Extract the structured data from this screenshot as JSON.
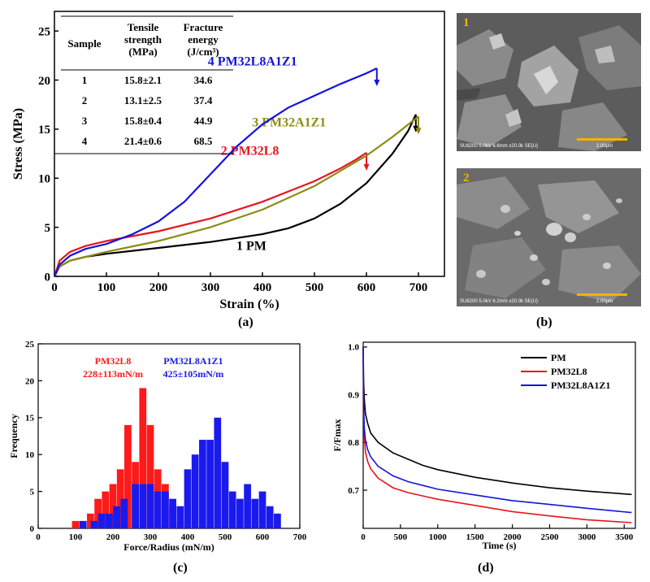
{
  "panels": {
    "a": {
      "caption": "(a)"
    },
    "b": {
      "caption": "(b)",
      "images": [
        {
          "number": "1",
          "info": "SU8200 5.0kV 6.6mm x20.0k SE(U)",
          "scale": "2.00μm"
        },
        {
          "number": "2",
          "info": "SU8200 5.0kV 6.2mm x20.0k SE(U)",
          "scale": "2.00μm"
        }
      ]
    },
    "c": {
      "caption": "(c)"
    },
    "d": {
      "caption": "(d)"
    }
  },
  "table": {
    "headers": [
      "Sample",
      "Tensile strength (MPa)",
      "Fracture energy (J/cm³)"
    ],
    "header_lines": [
      [
        "Sample"
      ],
      [
        "Tensile",
        "strength",
        "(MPa)"
      ],
      [
        "Fracture",
        "energy",
        "(J/cm³)"
      ]
    ],
    "rows": [
      [
        "1",
        "15.8±2.1",
        "34.6"
      ],
      [
        "2",
        "13.1±2.5",
        "37.4"
      ],
      [
        "3",
        "15.8±0.4",
        "44.9"
      ],
      [
        "4",
        "21.4±0.6",
        "68.5"
      ]
    ]
  },
  "chart_data": [
    {
      "panel": "a",
      "type": "line",
      "xlabel": "Strain (%)",
      "ylabel": "Stress (MPa)",
      "xlim": [
        0,
        750
      ],
      "ylim": [
        0,
        27
      ],
      "xticks": [
        0,
        100,
        200,
        300,
        400,
        500,
        600,
        700
      ],
      "yticks": [
        0,
        5,
        10,
        15,
        20,
        25
      ],
      "series": [
        {
          "name": "1 PM",
          "color": "#000000",
          "x": [
            0,
            10,
            30,
            60,
            100,
            200,
            300,
            400,
            450,
            500,
            550,
            600,
            650,
            680,
            695
          ],
          "y": [
            0,
            1.0,
            1.6,
            2.0,
            2.3,
            2.9,
            3.5,
            4.3,
            4.9,
            5.9,
            7.4,
            9.5,
            12.5,
            14.8,
            16.5
          ],
          "break_x": 695,
          "break_y": 16.5
        },
        {
          "name": "2 PM32L8",
          "color": "#e8141e",
          "x": [
            0,
            10,
            30,
            60,
            100,
            200,
            300,
            400,
            500,
            550,
            580,
            600
          ],
          "y": [
            0,
            1.6,
            2.5,
            3.1,
            3.6,
            4.6,
            5.9,
            7.6,
            9.7,
            11.0,
            11.9,
            12.6
          ],
          "break_x": 600,
          "break_y": 12.6
        },
        {
          "name": "3 PM32A1Z1",
          "color": "#8c8c14",
          "x": [
            0,
            10,
            30,
            60,
            100,
            200,
            300,
            400,
            500,
            600,
            650,
            700
          ],
          "y": [
            0,
            1.0,
            1.6,
            2.0,
            2.5,
            3.6,
            5.0,
            6.8,
            9.2,
            12.3,
            14.2,
            16.3
          ],
          "break_x": 700,
          "break_y": 16.3
        },
        {
          "name": "4 PM32L8A1Z1",
          "color": "#1414dc",
          "x": [
            0,
            10,
            30,
            60,
            100,
            150,
            200,
            250,
            300,
            350,
            400,
            450,
            500,
            550,
            600,
            620
          ],
          "y": [
            0,
            1.2,
            2.1,
            2.8,
            3.3,
            4.3,
            5.6,
            7.6,
            10.4,
            13.2,
            15.5,
            17.2,
            18.4,
            19.6,
            20.7,
            21.2
          ],
          "break_x": 620,
          "break_y": 21.2
        }
      ]
    },
    {
      "panel": "c",
      "type": "bar",
      "xlabel": "Force/Radius (mN/m)",
      "ylabel": "Frequency",
      "xlim": [
        0,
        700
      ],
      "ylim": [
        0,
        25
      ],
      "xticks": [
        0,
        100,
        200,
        300,
        400,
        500,
        600,
        700
      ],
      "yticks": [
        0,
        5,
        10,
        15,
        20,
        25
      ],
      "series": [
        {
          "name": "PM32L8",
          "color": "#ff1a1a",
          "stat": "228±113mN/m",
          "x": [
            100,
            120,
            140,
            160,
            180,
            200,
            220,
            240,
            260,
            280,
            300,
            320,
            340,
            360,
            380
          ],
          "values": [
            1,
            1,
            2,
            4,
            5,
            6,
            8,
            14,
            9,
            19,
            14,
            8,
            6,
            3,
            1
          ]
        },
        {
          "name": "PM32L8A1Z1",
          "color": "#1a1aee",
          "stat": "425±105mN/m",
          "x": [
            120,
            150,
            170,
            190,
            210,
            230,
            260,
            280,
            300,
            320,
            340,
            360,
            380,
            400,
            420,
            440,
            460,
            480,
            500,
            520,
            540,
            560,
            580,
            600,
            620,
            640
          ],
          "values": [
            1,
            1,
            2,
            2,
            3,
            4,
            6,
            6,
            6,
            5,
            5,
            4,
            3,
            8,
            10,
            12,
            12,
            15,
            9,
            5,
            4,
            6,
            4,
            5,
            3,
            2
          ]
        }
      ]
    },
    {
      "panel": "d",
      "type": "line",
      "xlabel": "Time (s)",
      "ylabel": "F/Fmax",
      "xlim": [
        0,
        3650
      ],
      "ylim": [
        0.62,
        1.01
      ],
      "xticks": [
        0,
        500,
        1000,
        1500,
        2000,
        2500,
        3000,
        3500
      ],
      "yticks": [
        0.7,
        0.8,
        0.9,
        1.0
      ],
      "series": [
        {
          "name": "PM",
          "color": "#000000",
          "x": [
            0,
            5,
            15,
            30,
            60,
            100,
            200,
            400,
            600,
            800,
            1000,
            1500,
            2000,
            2500,
            3000,
            3600
          ],
          "y": [
            1.0,
            0.93,
            0.89,
            0.86,
            0.84,
            0.82,
            0.8,
            0.778,
            0.765,
            0.752,
            0.743,
            0.727,
            0.715,
            0.705,
            0.698,
            0.691
          ]
        },
        {
          "name": "PM32L8",
          "color": "#e8141e",
          "x": [
            0,
            5,
            15,
            30,
            60,
            100,
            200,
            400,
            600,
            800,
            1000,
            1500,
            2000,
            2500,
            3000,
            3600
          ],
          "y": [
            1.0,
            0.86,
            0.81,
            0.78,
            0.76,
            0.745,
            0.725,
            0.705,
            0.695,
            0.688,
            0.681,
            0.668,
            0.655,
            0.646,
            0.638,
            0.632
          ]
        },
        {
          "name": "PM32L8A1Z1",
          "color": "#1414dc",
          "x": [
            0,
            5,
            15,
            30,
            60,
            100,
            200,
            400,
            600,
            800,
            1000,
            1500,
            2000,
            2500,
            3000,
            3600
          ],
          "y": [
            1.0,
            0.88,
            0.83,
            0.805,
            0.785,
            0.77,
            0.75,
            0.73,
            0.718,
            0.71,
            0.702,
            0.69,
            0.678,
            0.67,
            0.662,
            0.653
          ]
        }
      ]
    }
  ]
}
